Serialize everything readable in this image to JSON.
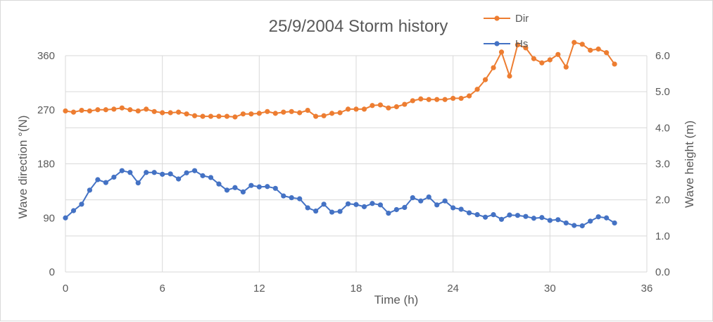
{
  "chart_data": {
    "type": "line",
    "title": "25/9/2004 Storm history",
    "xlabel": "Time (h)",
    "ylabel_left": "Wave direction °(N)",
    "ylabel_right": "Wave height (m)",
    "xlim": [
      0,
      36
    ],
    "x_ticks": [
      "0",
      "6",
      "12",
      "18",
      "24",
      "30",
      "36"
    ],
    "ylim_left": [
      0,
      360
    ],
    "y_left_ticks": [
      "0",
      "90",
      "180",
      "270",
      "360"
    ],
    "ylim_right": [
      0,
      6
    ],
    "y_right_ticks": [
      "0.0",
      "1.0",
      "2.0",
      "3.0",
      "4.0",
      "5.0",
      "6.0"
    ],
    "grid": true,
    "legend": "top-right",
    "series": [
      {
        "name": "Dir",
        "axis": "left",
        "color": "#ED7D31",
        "x": [
          0,
          0.5,
          1,
          1.5,
          2,
          2.5,
          3,
          3.5,
          4,
          4.5,
          5,
          5.5,
          6,
          6.5,
          7,
          7.5,
          8,
          8.5,
          9,
          9.5,
          10,
          10.5,
          11,
          11.5,
          12,
          12.5,
          13,
          13.5,
          14,
          14.5,
          15,
          15.5,
          16,
          16.5,
          17,
          17.5,
          18,
          18.5,
          19,
          19.5,
          20,
          20.5,
          21,
          21.5,
          22,
          22.5,
          23,
          23.5,
          24,
          24.5,
          25,
          25.5,
          26,
          26.5,
          27,
          27.5,
          28,
          28.5,
          29,
          29.5,
          30,
          30.5,
          31,
          31.5,
          32,
          32.5,
          33,
          33.5,
          34
        ],
        "values": [
          268,
          266,
          269,
          268,
          270,
          270,
          271,
          273,
          270,
          268,
          271,
          267,
          265,
          265,
          266,
          263,
          260,
          259,
          259,
          259,
          259,
          258,
          263,
          263,
          264,
          267,
          264,
          266,
          267,
          265,
          269,
          259,
          260,
          264,
          265,
          271,
          271,
          271,
          277,
          278,
          273,
          275,
          279,
          285,
          288,
          287,
          287,
          287,
          289,
          289,
          293,
          304,
          320,
          340,
          366,
          326,
          378,
          373,
          355,
          348,
          353,
          362,
          341,
          382,
          379,
          369,
          371,
          365,
          346
        ]
      },
      {
        "name": "Hs",
        "axis": "right",
        "color": "#4472C4",
        "x": [
          0,
          0.5,
          1,
          1.5,
          2,
          2.5,
          3,
          3.5,
          4,
          4.5,
          5,
          5.5,
          6,
          6.5,
          7,
          7.5,
          8,
          8.5,
          9,
          9.5,
          10,
          10.5,
          11,
          11.5,
          12,
          12.5,
          13,
          13.5,
          14,
          14.5,
          15,
          15.5,
          16,
          16.5,
          17,
          17.5,
          18,
          18.5,
          19,
          19.5,
          20,
          20.5,
          21,
          21.5,
          22,
          22.5,
          23,
          23.5,
          24,
          24.5,
          25,
          25.5,
          26,
          26.5,
          27,
          27.5,
          28,
          28.5,
          29,
          29.5,
          30,
          30.5,
          31,
          31.5,
          32,
          32.5,
          33,
          33.5,
          34
        ],
        "values": [
          1.5,
          1.7,
          1.88,
          2.27,
          2.56,
          2.48,
          2.63,
          2.81,
          2.76,
          2.47,
          2.76,
          2.76,
          2.71,
          2.72,
          2.58,
          2.75,
          2.81,
          2.67,
          2.62,
          2.44,
          2.27,
          2.34,
          2.22,
          2.4,
          2.36,
          2.37,
          2.32,
          2.11,
          2.06,
          2.03,
          1.78,
          1.69,
          1.88,
          1.66,
          1.68,
          1.89,
          1.87,
          1.81,
          1.9,
          1.86,
          1.63,
          1.73,
          1.79,
          2.06,
          1.97,
          2.08,
          1.86,
          1.97,
          1.78,
          1.74,
          1.64,
          1.59,
          1.52,
          1.59,
          1.46,
          1.58,
          1.57,
          1.54,
          1.49,
          1.51,
          1.43,
          1.45,
          1.36,
          1.29,
          1.28,
          1.41,
          1.53,
          1.5,
          1.36
        ]
      }
    ]
  }
}
